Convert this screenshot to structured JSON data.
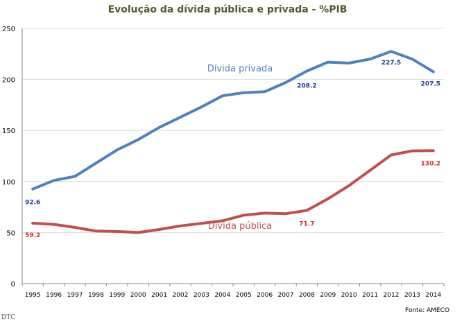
{
  "chart_data": {
    "type": "line",
    "title": "Evolução da dívida pública e privada - %PIB",
    "source": "Fonte: AMECO",
    "footer_fragment": "DTC",
    "x": [
      "1995",
      "1996",
      "1997",
      "1998",
      "1999",
      "2000",
      "2001",
      "2002",
      "2003",
      "2004",
      "2005",
      "2006",
      "2007",
      "2008",
      "2009",
      "2010",
      "2011",
      "2012",
      "2013",
      "2014"
    ],
    "ylim": [
      0,
      250
    ],
    "yticks": [
      "0",
      "50",
      "100",
      "150",
      "200",
      "250"
    ],
    "grid": true,
    "series": [
      {
        "name": "Dívida privada",
        "color": "#4f81bd",
        "label_color": "#1f3a93",
        "values": [
          92.6,
          101,
          105,
          118,
          131,
          141,
          153,
          163,
          173,
          184,
          187,
          188,
          197,
          208.2,
          217,
          216,
          220,
          227.5,
          220,
          207.5
        ],
        "data_labels": [
          {
            "index": 0,
            "text": "92.6"
          },
          {
            "index": 13,
            "text": "208.2"
          },
          {
            "index": 17,
            "text": "227.5"
          },
          {
            "index": 19,
            "text": "207.5"
          }
        ]
      },
      {
        "name": "Dívida pública",
        "color": "#c0504d",
        "label_color": "#d92b2b",
        "values": [
          59.2,
          58,
          55,
          51.5,
          51,
          50,
          53,
          56.5,
          59,
          61.5,
          67,
          69,
          68.5,
          71.7,
          83,
          96,
          111,
          126,
          130,
          130.2
        ],
        "data_labels": [
          {
            "index": 0,
            "text": "59.2"
          },
          {
            "index": 13,
            "text": "71.7"
          },
          {
            "index": 19,
            "text": "130.2"
          }
        ]
      }
    ]
  }
}
